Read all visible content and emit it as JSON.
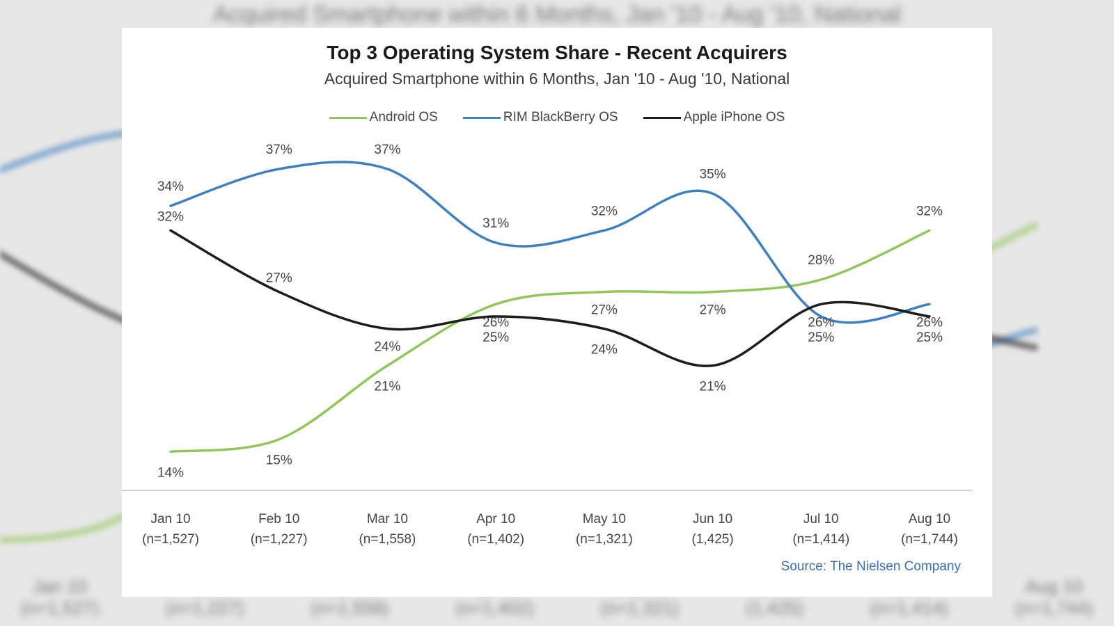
{
  "chart_data": {
    "type": "line",
    "title": "Top 3 Operating System Share - Recent Acquirers",
    "subtitle": "Acquired Smartphone within 6 Months, Jan '10 - Aug '10, National",
    "categories": [
      [
        "Jan 10",
        "(n=1,527)"
      ],
      [
        "Feb 10",
        "(n=1,227)"
      ],
      [
        "Mar 10",
        "(n=1,558)"
      ],
      [
        "Apr 10",
        "(n=1,402)"
      ],
      [
        "May  10",
        "(n=1,321)"
      ],
      [
        "Jun 10",
        "(1,425)"
      ],
      [
        "Jul 10",
        "(n=1,414)"
      ],
      [
        "Aug 10",
        "(n=1,744)"
      ]
    ],
    "series": [
      {
        "name": "Android OS",
        "color": "#92c65a",
        "values": [
          14,
          15,
          21,
          26,
          27,
          27,
          28,
          32
        ]
      },
      {
        "name": "RIM BlackBerry OS",
        "color": "#3d7fbf",
        "values": [
          34,
          37,
          37,
          31,
          32,
          35,
          25,
          26
        ]
      },
      {
        "name": "Apple iPhone OS",
        "color": "#1c1c1c",
        "values": [
          32,
          27,
          24,
          25,
          24,
          21,
          26,
          25
        ]
      }
    ],
    "data_labels": {
      "Android OS": [
        "14%",
        "15%",
        "21%",
        "26%",
        "27%",
        "27%",
        "28%",
        "32%"
      ],
      "RIM BlackBerry OS": [
        "34%",
        "37%",
        "37%",
        "31%",
        "32%",
        "35%",
        "25%",
        "26%"
      ],
      "Apple iPhone OS": [
        "32%",
        "27%",
        "24%",
        "25%",
        "24%",
        "21%",
        "26%",
        "25%"
      ]
    },
    "ylim": [
      10,
      40
    ],
    "grid": false,
    "legend_position": "top-center"
  },
  "source": "Source: The Nielsen Company",
  "backdrop": {
    "title": "Acquired Smartphone within 6 Months, Jan '10 - Aug '10, National"
  }
}
